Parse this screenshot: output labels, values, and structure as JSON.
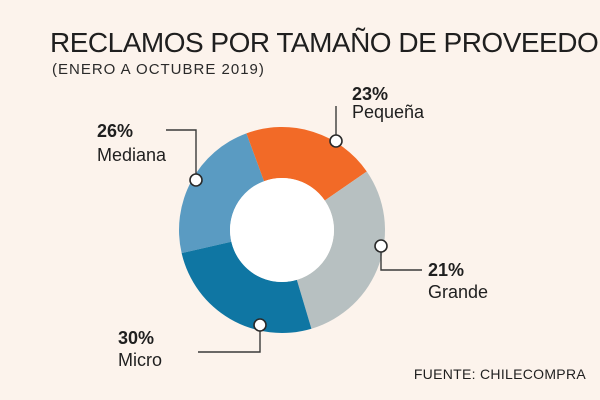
{
  "header": {
    "title": "RECLAMOS POR TAMAÑO DE PROVEEDOR",
    "subtitle": "(ENERO A OCTUBRE 2019)"
  },
  "footer": {
    "source": "FUENTE: CHILECOMPRA"
  },
  "chart_data": {
    "type": "pie",
    "donut": true,
    "title": "RECLAMOS POR TAMAÑO DE PROVEEDOR",
    "subtitle": "(ENERO A OCTUBRE 2019)",
    "categories": [
      "Pequeña",
      "Grande",
      "Micro",
      "Mediana"
    ],
    "values": [
      23,
      21,
      30,
      26
    ],
    "value_labels": [
      "23%",
      "21%",
      "30%",
      "26%"
    ],
    "colors": [
      "#5a9bc2",
      "#f26a27",
      "#b7c0c1",
      "#0f76a3"
    ],
    "center_color": "#ffffff",
    "background": "#fcf3ec"
  }
}
